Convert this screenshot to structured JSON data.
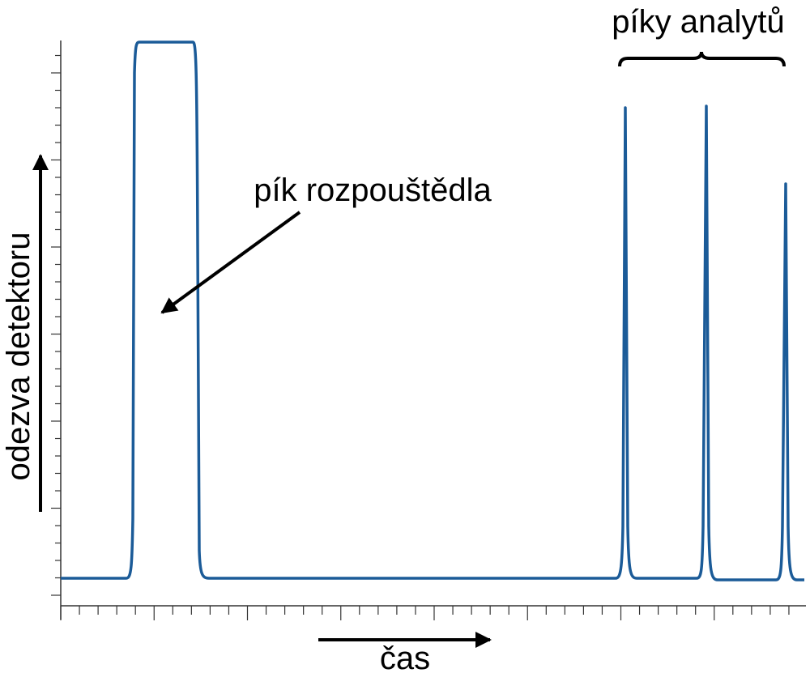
{
  "labels": {
    "solvent_peak": "pík rozpouštědla",
    "analyte_peaks": "píky analytů",
    "y_axis": "odezva detektoru",
    "x_axis": "čas"
  }
}
